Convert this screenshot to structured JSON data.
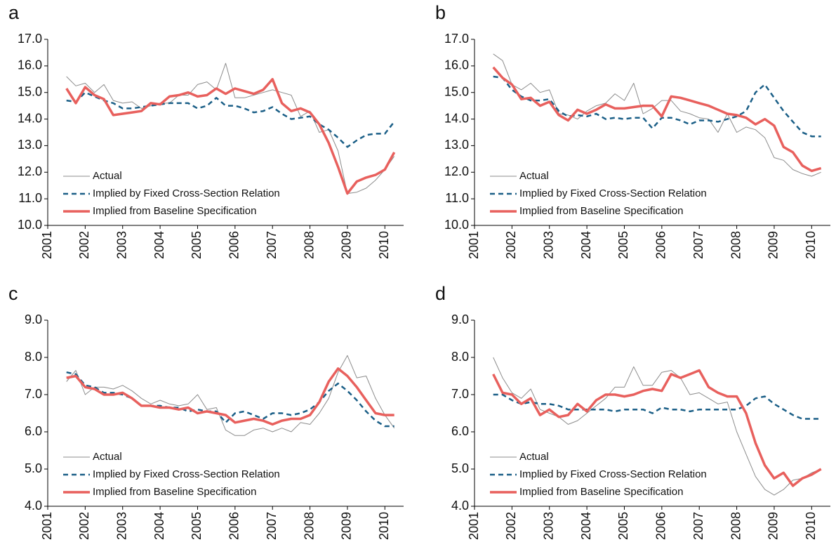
{
  "chart_data": [
    {
      "type": "line",
      "title": "a",
      "legend": "lower left",
      "x": [
        2001.5,
        2001.75,
        2002,
        2002.25,
        2002.5,
        2002.75,
        2003,
        2003.25,
        2003.5,
        2003.75,
        2004,
        2004.25,
        2004.5,
        2004.75,
        2005,
        2005.25,
        2005.5,
        2005.75,
        2006,
        2006.25,
        2006.5,
        2006.75,
        2007,
        2007.25,
        2007.5,
        2007.75,
        2008,
        2008.25,
        2008.5,
        2008.75,
        2009,
        2009.25,
        2009.5,
        2009.75,
        2010,
        2010.25
      ],
      "xlim": [
        2001,
        2010.5
      ],
      "xticks": [
        2001,
        2002,
        2003,
        2004,
        2005,
        2006,
        2007,
        2008,
        2009,
        2010
      ],
      "ylim": [
        10,
        17
      ],
      "yticks": [
        {
          "value": 10,
          "label": "10.0"
        },
        {
          "value": 11,
          "label": "11.0"
        },
        {
          "value": 12,
          "label": "12.0"
        },
        {
          "value": 13,
          "label": "13.0"
        },
        {
          "value": 14,
          "label": "14.0"
        },
        {
          "value": 15,
          "label": "15.0"
        },
        {
          "value": 16,
          "label": "16.0"
        },
        {
          "value": 17,
          "label": "17.0"
        }
      ],
      "series": [
        {
          "name": "Actual",
          "color": "#8c8c8c",
          "line_style": "solid",
          "line_width": 1,
          "values": [
            15.6,
            15.25,
            15.35,
            15.0,
            15.3,
            14.7,
            14.6,
            14.65,
            14.4,
            14.5,
            14.6,
            14.6,
            14.9,
            14.9,
            15.3,
            15.4,
            15.1,
            16.1,
            14.8,
            14.8,
            14.9,
            15.0,
            15.1,
            15.0,
            14.9,
            14.1,
            14.3,
            13.5,
            13.6,
            12.8,
            11.2,
            11.25,
            11.4,
            11.7,
            12.1,
            12.6
          ]
        },
        {
          "name": "Implied by Fixed Cross-Section Relation",
          "color": "#1b5f87",
          "line_style": "dashed",
          "line_width": 2.5,
          "values": [
            14.7,
            14.65,
            15.0,
            14.85,
            14.7,
            14.6,
            14.4,
            14.4,
            14.45,
            14.5,
            14.55,
            14.6,
            14.6,
            14.6,
            14.4,
            14.5,
            14.8,
            14.5,
            14.5,
            14.4,
            14.25,
            14.3,
            14.45,
            14.2,
            14.0,
            14.05,
            14.1,
            13.8,
            13.6,
            13.3,
            12.95,
            13.2,
            13.4,
            13.45,
            13.45,
            13.9
          ]
        },
        {
          "name": "Implied from Baseline Specification",
          "color": "#e8605d",
          "line_style": "solid",
          "line_width": 3.5,
          "values": [
            15.15,
            14.6,
            15.2,
            14.9,
            14.75,
            14.15,
            14.2,
            14.25,
            14.3,
            14.6,
            14.55,
            14.85,
            14.9,
            15.0,
            14.85,
            14.9,
            15.15,
            14.95,
            15.15,
            15.05,
            14.95,
            15.1,
            15.5,
            14.6,
            14.3,
            14.4,
            14.25,
            13.8,
            13.1,
            12.2,
            11.2,
            11.65,
            11.8,
            11.9,
            12.1,
            12.75
          ]
        }
      ]
    },
    {
      "type": "line",
      "title": "b",
      "legend": "lower left",
      "x": [
        2001.5,
        2001.75,
        2002,
        2002.25,
        2002.5,
        2002.75,
        2003,
        2003.25,
        2003.5,
        2003.75,
        2004,
        2004.25,
        2004.5,
        2004.75,
        2005,
        2005.25,
        2005.5,
        2005.75,
        2006,
        2006.25,
        2006.5,
        2006.75,
        2007,
        2007.25,
        2007.5,
        2007.75,
        2008,
        2008.25,
        2008.5,
        2008.75,
        2009,
        2009.25,
        2009.5,
        2009.75,
        2010,
        2010.25
      ],
      "xlim": [
        2001,
        2010.5
      ],
      "xticks": [
        2001,
        2002,
        2003,
        2004,
        2005,
        2006,
        2007,
        2008,
        2009,
        2010
      ],
      "ylim": [
        10,
        17
      ],
      "yticks": [
        {
          "value": 10,
          "label": "10.0"
        },
        {
          "value": 11,
          "label": "11.0"
        },
        {
          "value": 12,
          "label": "12.0"
        },
        {
          "value": 13,
          "label": "13.0"
        },
        {
          "value": 14,
          "label": "14.0"
        },
        {
          "value": 15,
          "label": "15.0"
        },
        {
          "value": 16,
          "label": "16.0"
        },
        {
          "value": 17,
          "label": "17.0"
        }
      ],
      "series": [
        {
          "name": "Actual",
          "color": "#8c8c8c",
          "line_style": "solid",
          "line_width": 1,
          "values": [
            16.45,
            16.2,
            15.3,
            15.1,
            15.35,
            15.0,
            15.1,
            14.2,
            14.15,
            14.0,
            14.3,
            14.5,
            14.6,
            14.95,
            14.7,
            15.35,
            14.2,
            14.4,
            14.7,
            14.7,
            14.3,
            14.2,
            14.05,
            14.0,
            13.5,
            14.2,
            13.5,
            13.7,
            13.6,
            13.3,
            12.55,
            12.45,
            12.1,
            11.95,
            11.85,
            12.0
          ]
        },
        {
          "name": "Implied by Fixed Cross-Section Relation",
          "color": "#1b5f87",
          "line_style": "dashed",
          "line_width": 2.5,
          "values": [
            15.6,
            15.55,
            15.1,
            14.85,
            14.7,
            14.7,
            14.75,
            14.3,
            14.1,
            14.15,
            14.1,
            14.2,
            14.0,
            14.05,
            14.0,
            14.05,
            14.05,
            13.65,
            14.05,
            14.05,
            13.95,
            13.8,
            13.95,
            13.95,
            13.9,
            14.0,
            14.1,
            14.3,
            15.0,
            15.3,
            14.8,
            14.3,
            13.9,
            13.5,
            13.35,
            13.35
          ]
        },
        {
          "name": "Implied from Baseline Specification",
          "color": "#e8605d",
          "line_style": "solid",
          "line_width": 3.5,
          "values": [
            15.95,
            15.55,
            15.3,
            14.75,
            14.8,
            14.5,
            14.65,
            14.15,
            13.95,
            14.35,
            14.2,
            14.35,
            14.55,
            14.4,
            14.4,
            14.45,
            14.5,
            14.5,
            14.1,
            14.85,
            14.8,
            14.7,
            14.6,
            14.5,
            14.35,
            14.2,
            14.15,
            14.05,
            13.8,
            14.0,
            13.75,
            12.95,
            12.75,
            12.25,
            12.05,
            12.15
          ]
        }
      ]
    },
    {
      "type": "line",
      "title": "c",
      "legend": "lower left",
      "x": [
        2001.5,
        2001.75,
        2002,
        2002.25,
        2002.5,
        2002.75,
        2003,
        2003.25,
        2003.5,
        2003.75,
        2004,
        2004.25,
        2004.5,
        2004.75,
        2005,
        2005.25,
        2005.5,
        2005.75,
        2006,
        2006.25,
        2006.5,
        2006.75,
        2007,
        2007.25,
        2007.5,
        2007.75,
        2008,
        2008.25,
        2008.5,
        2008.75,
        2009,
        2009.25,
        2009.5,
        2009.75,
        2010,
        2010.25
      ],
      "xlim": [
        2001,
        2010.5
      ],
      "xticks": [
        2001,
        2002,
        2003,
        2004,
        2005,
        2006,
        2007,
        2008,
        2009,
        2010
      ],
      "ylim": [
        4,
        9
      ],
      "yticks": [
        {
          "value": 4,
          "label": "4.0"
        },
        {
          "value": 5,
          "label": "5.0"
        },
        {
          "value": 6,
          "label": "6.0"
        },
        {
          "value": 7,
          "label": "7.0"
        },
        {
          "value": 8,
          "label": "8.0"
        },
        {
          "value": 9,
          "label": "9.0"
        }
      ],
      "series": [
        {
          "name": "Actual",
          "color": "#8c8c8c",
          "line_style": "solid",
          "line_width": 1,
          "values": [
            7.35,
            7.65,
            7.0,
            7.2,
            7.2,
            7.15,
            7.25,
            7.1,
            6.9,
            6.75,
            6.85,
            6.75,
            6.7,
            6.75,
            7.0,
            6.6,
            6.65,
            6.05,
            5.9,
            5.9,
            6.05,
            6.1,
            6.0,
            6.1,
            6.0,
            6.25,
            6.2,
            6.5,
            6.9,
            7.6,
            8.05,
            7.45,
            7.5,
            6.9,
            6.45,
            6.1
          ]
        },
        {
          "name": "Implied by Fixed Cross-Section Relation",
          "color": "#1b5f87",
          "line_style": "dashed",
          "line_width": 2.5,
          "values": [
            7.6,
            7.55,
            7.25,
            7.2,
            7.05,
            7.05,
            7.0,
            6.9,
            6.7,
            6.7,
            6.7,
            6.65,
            6.65,
            6.55,
            6.6,
            6.55,
            6.55,
            6.25,
            6.5,
            6.55,
            6.45,
            6.35,
            6.5,
            6.5,
            6.45,
            6.5,
            6.6,
            6.8,
            7.1,
            7.3,
            7.1,
            6.85,
            6.55,
            6.3,
            6.15,
            6.15
          ]
        },
        {
          "name": "Implied from Baseline Specification",
          "color": "#e8605d",
          "line_style": "solid",
          "line_width": 3.5,
          "values": [
            7.45,
            7.5,
            7.2,
            7.15,
            7.0,
            7.0,
            7.05,
            6.9,
            6.7,
            6.7,
            6.65,
            6.65,
            6.6,
            6.65,
            6.5,
            6.55,
            6.5,
            6.45,
            6.25,
            6.3,
            6.35,
            6.3,
            6.2,
            6.3,
            6.35,
            6.35,
            6.45,
            6.8,
            7.35,
            7.7,
            7.5,
            7.2,
            6.85,
            6.5,
            6.45,
            6.45
          ]
        }
      ]
    },
    {
      "type": "line",
      "title": "d",
      "legend": "lower left",
      "x": [
        2001.5,
        2001.75,
        2002,
        2002.25,
        2002.5,
        2002.75,
        2003,
        2003.25,
        2003.5,
        2003.75,
        2004,
        2004.25,
        2004.5,
        2004.75,
        2005,
        2005.25,
        2005.5,
        2005.75,
        2006,
        2006.25,
        2006.5,
        2006.75,
        2007,
        2007.25,
        2007.5,
        2007.75,
        2008,
        2008.25,
        2008.5,
        2008.75,
        2009,
        2009.25,
        2009.5,
        2009.75,
        2010,
        2010.25
      ],
      "xlim": [
        2001,
        2010.5
      ],
      "xticks": [
        2001,
        2002,
        2003,
        2004,
        2005,
        2006,
        2007,
        2008,
        2009,
        2010
      ],
      "ylim": [
        4,
        9
      ],
      "yticks": [
        {
          "value": 4,
          "label": "4.0"
        },
        {
          "value": 5,
          "label": "5.0"
        },
        {
          "value": 6,
          "label": "6.0"
        },
        {
          "value": 7,
          "label": "7.0"
        },
        {
          "value": 8,
          "label": "8.0"
        },
        {
          "value": 9,
          "label": "9.0"
        }
      ],
      "series": [
        {
          "name": "Actual",
          "color": "#8c8c8c",
          "line_style": "solid",
          "line_width": 1,
          "values": [
            8.0,
            7.45,
            7.05,
            6.9,
            7.15,
            6.6,
            6.5,
            6.4,
            6.2,
            6.3,
            6.5,
            6.7,
            6.9,
            7.2,
            7.2,
            7.75,
            7.25,
            7.25,
            7.6,
            7.65,
            7.45,
            7.0,
            7.05,
            6.9,
            6.75,
            6.8,
            6.0,
            5.4,
            4.8,
            4.45,
            4.3,
            4.45,
            4.7,
            4.75,
            4.9,
            5.0
          ]
        },
        {
          "name": "Implied by Fixed Cross-Section Relation",
          "color": "#1b5f87",
          "line_style": "dashed",
          "line_width": 2.5,
          "values": [
            7.0,
            7.0,
            6.85,
            6.75,
            6.8,
            6.75,
            6.75,
            6.7,
            6.6,
            6.6,
            6.6,
            6.6,
            6.6,
            6.55,
            6.6,
            6.6,
            6.6,
            6.5,
            6.65,
            6.6,
            6.6,
            6.55,
            6.6,
            6.6,
            6.6,
            6.6,
            6.6,
            6.7,
            6.9,
            6.95,
            6.75,
            6.6,
            6.45,
            6.35,
            6.35,
            6.35
          ]
        },
        {
          "name": "Implied from Baseline Specification",
          "color": "#e8605d",
          "line_style": "solid",
          "line_width": 3.5,
          "values": [
            7.55,
            7.05,
            7.0,
            6.75,
            6.9,
            6.45,
            6.6,
            6.4,
            6.45,
            6.75,
            6.55,
            6.85,
            7.0,
            7.0,
            6.95,
            7.0,
            7.1,
            7.15,
            7.1,
            7.55,
            7.45,
            7.55,
            7.65,
            7.2,
            7.05,
            6.95,
            6.95,
            6.5,
            5.7,
            5.1,
            4.75,
            4.9,
            4.55,
            4.75,
            4.85,
            5.0
          ]
        }
      ]
    }
  ]
}
